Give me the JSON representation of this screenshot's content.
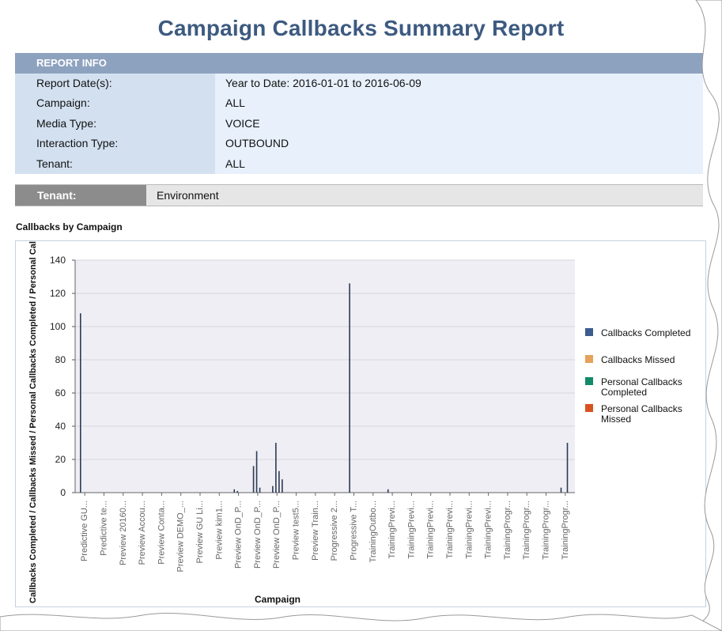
{
  "report": {
    "title": "Campaign Callbacks Summary Report"
  },
  "report_info": {
    "header": "REPORT INFO",
    "rows": [
      {
        "label": "Report Date(s):",
        "value": "Year to Date: 2016-01-01 to 2016-06-09"
      },
      {
        "label": "Campaign:",
        "value": "ALL"
      },
      {
        "label": "Media Type:",
        "value": "VOICE"
      },
      {
        "label": "Interaction Type:",
        "value": "OUTBOUND"
      },
      {
        "label": "Tenant:",
        "value": "ALL"
      }
    ]
  },
  "tenant": {
    "label": "Tenant:",
    "value": "Environment"
  },
  "section": {
    "title": "Callbacks by Campaign"
  },
  "colors": {
    "callbacks_completed": "#3d5c8f",
    "callbacks_missed": "#e6a15a",
    "personal_completed": "#12896b",
    "personal_missed": "#d6531f",
    "bar_line": "#2b3b55",
    "plot_bg": "#efeef4",
    "title": "#3d5a80"
  },
  "chart_data": {
    "type": "bar",
    "title": "Callbacks by Campaign",
    "xlabel": "Campaign",
    "ylabel": "Callbacks Completed / Callbacks Missed / Personal Callbacks Completed / Personal Callbacks Missed",
    "ylim": [
      0,
      140
    ],
    "yticks": [
      0,
      20,
      40,
      60,
      80,
      100,
      120,
      140
    ],
    "categories": [
      "Predictive GU...",
      "Predictive te...",
      "Preview 20160...",
      "Preview Accou...",
      "Preview Conta...",
      "Preview DEMO_...",
      "Preview GU Li...",
      "Preview kim1...",
      "Preview OnD_P...",
      "Preview OnD_P...",
      "Preview OnD_P...",
      "Preview test5...",
      "Preview Train...",
      "Progressive 2...",
      "Progressive T...",
      "TrainingOutbo...",
      "TrainingPrevi...",
      "TrainingPrevi...",
      "TrainingPrevi...",
      "TrainingPrevi...",
      "TrainingPrevi...",
      "TrainingPrevi...",
      "TrainingProgr...",
      "TrainingProgr...",
      "TrainingProgr...",
      "TrainingProgr..."
    ],
    "series": [
      {
        "name": "Callbacks Completed",
        "values": [
          108,
          0,
          0,
          0,
          0,
          0,
          0,
          0,
          2,
          16,
          4,
          0,
          0,
          0,
          126,
          0,
          2,
          0,
          0,
          0,
          0,
          0,
          0,
          0,
          0,
          3
        ]
      },
      {
        "name": "Callbacks Missed",
        "values": [
          0,
          0,
          0,
          0,
          0,
          0,
          0,
          0,
          1,
          25,
          30,
          0,
          0,
          0,
          0,
          0,
          0,
          0,
          0,
          0,
          0,
          0,
          0,
          0,
          0,
          0
        ]
      },
      {
        "name": "Personal Callbacks Completed",
        "values": [
          0,
          0,
          0,
          0,
          0,
          0,
          0,
          0,
          0,
          3,
          13,
          0,
          0,
          0,
          0,
          0,
          0,
          0,
          0,
          0,
          0,
          0,
          0,
          0,
          0,
          30
        ]
      },
      {
        "name": "Personal Callbacks Missed",
        "values": [
          0,
          0,
          0,
          0,
          0,
          0,
          0,
          0,
          0,
          0,
          8,
          0,
          0,
          0,
          0,
          0,
          0,
          0,
          0,
          0,
          0,
          0,
          0,
          0,
          0,
          0
        ]
      }
    ],
    "legend": [
      {
        "name": "Callbacks Completed",
        "lines": [
          "Callbacks Completed"
        ]
      },
      {
        "name": "Callbacks Missed",
        "lines": [
          "Callbacks Missed"
        ]
      },
      {
        "name": "Personal Callbacks Completed",
        "lines": [
          "Personal Callbacks",
          "Completed"
        ]
      },
      {
        "name": "Personal Callbacks Missed",
        "lines": [
          "Personal Callbacks",
          "Missed"
        ]
      }
    ],
    "legend_position": "right"
  }
}
